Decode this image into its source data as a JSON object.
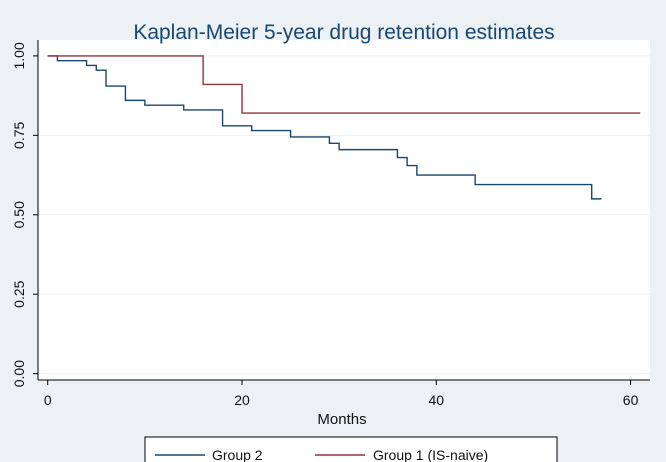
{
  "chart_data": {
    "type": "line",
    "step": true,
    "title": "Kaplan-Meier 5-year drug retention estimates",
    "xlabel": "Months",
    "ylabel": "",
    "xlim": [
      -1,
      62
    ],
    "ylim": [
      -0.02,
      1.05
    ],
    "x_ticks": [
      0,
      20,
      40,
      60
    ],
    "y_ticks": [
      0,
      0.25,
      0.5,
      0.75,
      1.0
    ],
    "x_tick_labels": [
      "0",
      "20",
      "40",
      "60"
    ],
    "y_tick_labels": [
      "0.00",
      "0.25",
      "0.50",
      "0.75",
      "1.00"
    ],
    "grid": true,
    "legend_position": "bottom",
    "series": [
      {
        "name": "Group 2",
        "color": "#1a476f",
        "x": [
          0,
          1,
          4,
          5,
          6,
          8,
          10,
          14,
          18,
          21,
          25,
          29,
          30,
          36,
          37,
          38,
          44,
          56,
          57
        ],
        "y": [
          1.0,
          0.985,
          0.97,
          0.955,
          0.905,
          0.86,
          0.845,
          0.83,
          0.78,
          0.765,
          0.745,
          0.725,
          0.705,
          0.68,
          0.655,
          0.625,
          0.595,
          0.55,
          0.55
        ]
      },
      {
        "name": "Group 1 (IS-naive)",
        "color": "#90353b",
        "x": [
          0,
          16,
          20,
          61
        ],
        "y": [
          1.0,
          0.91,
          0.82,
          0.82
        ]
      }
    ]
  }
}
